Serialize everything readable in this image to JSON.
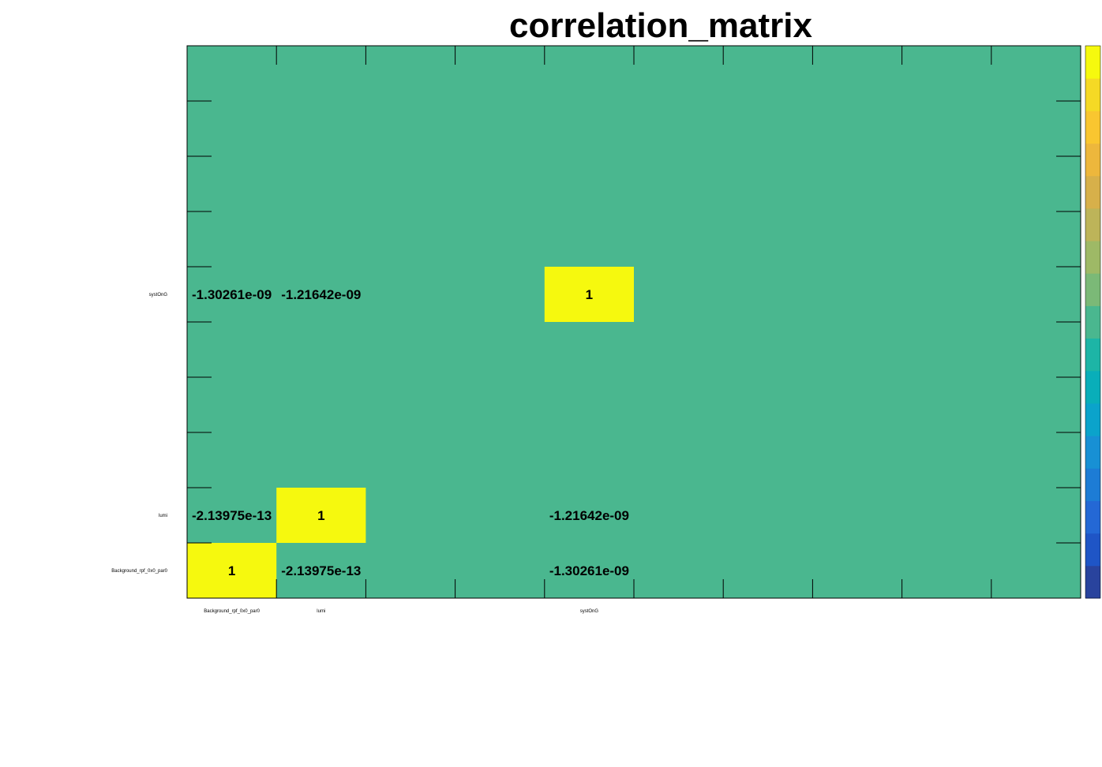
{
  "chart_data": {
    "type": "heatmap",
    "title": "correlation_matrix",
    "x_categories": [
      "Background_rpf_0x0_par0",
      "lumi",
      "",
      "",
      "systOnG",
      "",
      "",
      "",
      "",
      ""
    ],
    "y_categories": [
      "Background_rpf_0x0_par0",
      "lumi",
      "",
      "",
      "",
      "systOnG",
      "",
      "",
      "",
      ""
    ],
    "cells": [
      {
        "x": 0,
        "y": 0,
        "value": 1,
        "label": "1"
      },
      {
        "x": 1,
        "y": 0,
        "value": -2.13975e-13,
        "label": "-2.13975e-13"
      },
      {
        "x": 4,
        "y": 0,
        "value": -1.30261e-09,
        "label": "-1.30261e-09"
      },
      {
        "x": 0,
        "y": 1,
        "value": -2.13975e-13,
        "label": "-2.13975e-13"
      },
      {
        "x": 1,
        "y": 1,
        "value": 1,
        "label": "1"
      },
      {
        "x": 4,
        "y": 1,
        "value": -1.21642e-09,
        "label": "-1.21642e-09"
      },
      {
        "x": 0,
        "y": 5,
        "value": -1.30261e-09,
        "label": "-1.30261e-09"
      },
      {
        "x": 1,
        "y": 5,
        "value": -1.21642e-09,
        "label": "-1.21642e-09"
      },
      {
        "x": 4,
        "y": 5,
        "value": 1,
        "label": "1"
      }
    ],
    "color_scale": {
      "range": [
        -1,
        1
      ],
      "colors": [
        "#29439d",
        "#1f55c6",
        "#2468d5",
        "#1d7cd5",
        "#1890d4",
        "#0ba3cb",
        "#09aeb9",
        "#1db5a6",
        "#4ab78f",
        "#7bb977",
        "#9eb966",
        "#bdb459",
        "#d7b04a",
        "#edb73c",
        "#f9c630",
        "#f5d925",
        "#f6f90e"
      ]
    },
    "background_value": 0,
    "legend": "right"
  }
}
